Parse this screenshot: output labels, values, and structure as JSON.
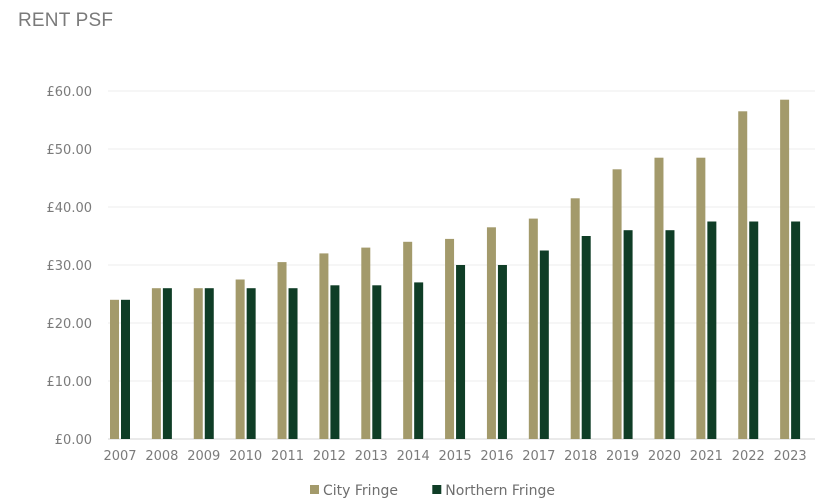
{
  "chart_data": {
    "type": "bar",
    "title": "RENT PSF",
    "xlabel": "",
    "ylabel": "",
    "categories": [
      "2007",
      "2008",
      "2009",
      "2010",
      "2011",
      "2012",
      "2013",
      "2014",
      "2015",
      "2016",
      "2017",
      "2018",
      "2019",
      "2020",
      "2021",
      "2022",
      "2023"
    ],
    "series": [
      {
        "name": "City Fringe",
        "color": "#a39a6b",
        "values": [
          24,
          26,
          26,
          27.5,
          30.5,
          32,
          33,
          34,
          34.5,
          36.5,
          38,
          41.5,
          46.5,
          48.5,
          48.5,
          56.5,
          58.5
        ]
      },
      {
        "name": "Northern Fringe",
        "color": "#0f3d26",
        "values": [
          24,
          26,
          26,
          26,
          26,
          26.5,
          26.5,
          27,
          30,
          30,
          32.5,
          35,
          36,
          36,
          37.5,
          37.5,
          37.5
        ]
      }
    ],
    "ylim": [
      0,
      60
    ],
    "yticks": [
      0,
      10,
      20,
      30,
      40,
      50,
      60
    ],
    "ytick_labels": [
      "£0.00",
      "£10.00",
      "£20.00",
      "£30.00",
      "£40.00",
      "£50.00",
      "£60.00"
    ],
    "grid": true,
    "legend_position": "bottom-center"
  }
}
